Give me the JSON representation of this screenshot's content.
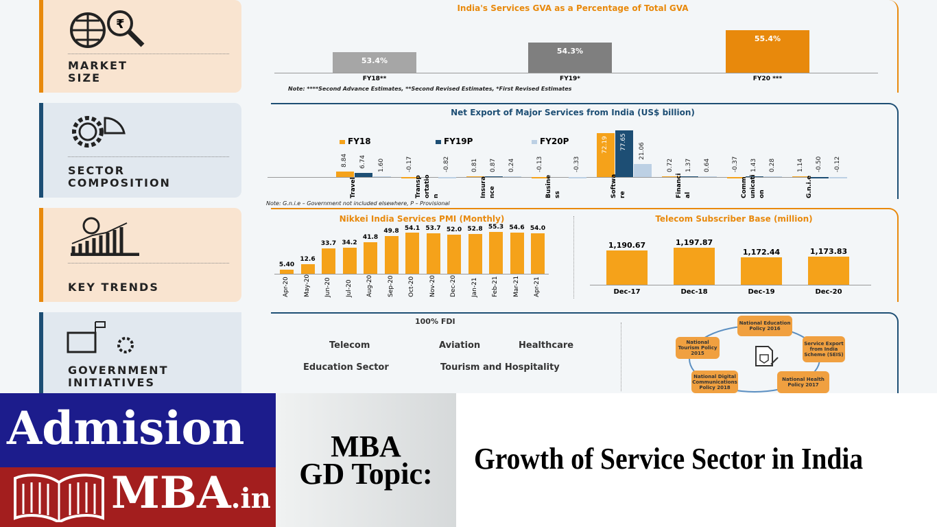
{
  "sections": {
    "market_size": "MARKET SIZE",
    "sector_composition": "SECTOR COMPOSITION",
    "key_trends": "KEY TRENDS",
    "government_initiatives": "GOVERNMENT INITIATIVES"
  },
  "chart_data": [
    {
      "type": "bar",
      "title": "India's Services GVA as a Percentage of Total GVA",
      "categories": [
        "FY18**",
        "FY19*",
        "FY20 ***"
      ],
      "values": [
        53.4,
        54.3,
        55.4
      ],
      "data_labels": [
        "53.4%",
        "54.3%",
        "55.4%"
      ],
      "colors": [
        "#a6a6a6",
        "#7f7f7f",
        "#e8890c"
      ],
      "ylim": [
        52,
        56
      ],
      "note": "Note: ****Second Advance Estimates, **Second Revised Estimates, *First Revised Estimates"
    },
    {
      "type": "bar",
      "title": "Net Export of Major Services from India (US$ billion)",
      "categories": [
        "Travel",
        "Transportation",
        "Insurance",
        "Business",
        "Software",
        "Financial",
        "Communications",
        "G.n.i.e"
      ],
      "category_labels": [
        "Travel",
        "Transp ortatio n",
        "Insura nce",
        "Busine ss",
        "Softwa re",
        "Financi al",
        "Comm unicati on",
        "G.n.i.e"
      ],
      "legend": "top-left",
      "series": [
        {
          "name": "FY18",
          "color": "#f5a21a",
          "values": [
            8.84,
            -0.17,
            0.81,
            -0.13,
            72.19,
            0.72,
            -0.37,
            1.14
          ]
        },
        {
          "name": "FY19P",
          "color": "#1d4e74",
          "values": [
            6.74,
            null,
            0.87,
            null,
            77.65,
            1.37,
            1.43,
            -0.5
          ]
        },
        {
          "name": "FY20P",
          "color": "#bcd0e4",
          "values": [
            1.6,
            -0.82,
            0.24,
            -0.33,
            21.06,
            0.64,
            0.28,
            -0.12
          ]
        }
      ],
      "note": "Note: G.n.i.e – Government not included elsewhere, P – Provisional"
    },
    {
      "type": "bar",
      "title": "Nikkei India Services PMI (Monthly)",
      "categories": [
        "Apr-20",
        "May-20",
        "Jun-20",
        "Jul-20",
        "Aug-20",
        "Sep-20",
        "Oct-20",
        "Nov-20",
        "Dec-20",
        "Jan-21",
        "Feb-21",
        "Mar-21",
        "Apr-21"
      ],
      "values": [
        5.4,
        12.6,
        33.7,
        34.2,
        41.8,
        49.8,
        54.1,
        53.7,
        52.0,
        52.8,
        55.3,
        54.6,
        54.0
      ],
      "data_labels": [
        "5.40",
        "12.6",
        "33.7",
        "34.2",
        "41.8",
        "49.8",
        "54.1",
        "53.7",
        "52.0",
        "52.8",
        "55.3",
        "54.6",
        "54.0"
      ],
      "color": "#f5a21a",
      "ylim": [
        0,
        60
      ]
    },
    {
      "type": "bar",
      "title": "Telecom Subscriber Base (million)",
      "categories": [
        "Dec-17",
        "Dec-18",
        "Dec-19",
        "Dec-20"
      ],
      "values": [
        1190.67,
        1197.87,
        1172.44,
        1173.83
      ],
      "data_labels": [
        "1,190.67",
        "1,197.87",
        "1,172.44",
        "1,173.83"
      ],
      "color": "#f5a21a",
      "ylim": [
        1100,
        1200
      ]
    }
  ],
  "government": {
    "fdi_title": "100% FDI",
    "fdi_sectors": [
      "Telecom",
      "Aviation",
      "Healthcare",
      "Education Sector",
      "Tourism and Hospitality"
    ],
    "policies": [
      "National Education Policy 2016",
      "Service Export from India Scheme (SEIS)",
      "National Health Policy 2017",
      "National Digital Communications Policy 2018",
      "National Tourism Policy 2015"
    ]
  },
  "banner": {
    "logo_top": "Admision",
    "logo_bottom": "MBA",
    "logo_suffix": ".in",
    "gd_line1": "MBA",
    "gd_line2": "GD Topic:",
    "topic": "Growth of Service Sector in India"
  }
}
